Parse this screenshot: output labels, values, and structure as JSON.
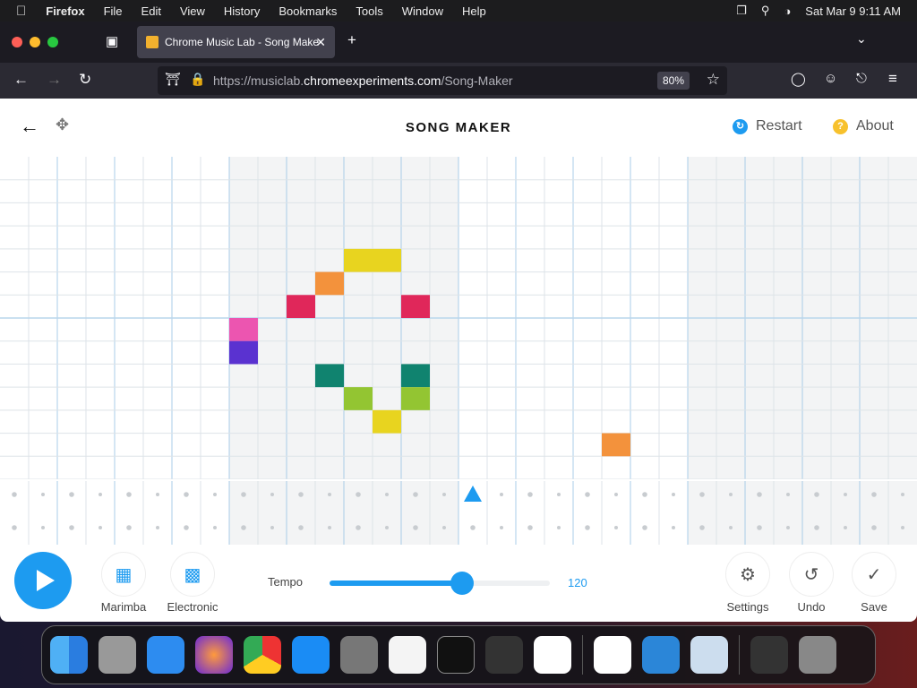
{
  "menubar": {
    "app": "Firefox",
    "items": [
      "File",
      "Edit",
      "View",
      "History",
      "Bookmarks",
      "Tools",
      "Window",
      "Help"
    ],
    "clock": "Sat Mar 9  9:11 AM"
  },
  "browser": {
    "tab_title": "Chrome Music Lab - Song Make",
    "url_prefix": "https://musiclab.",
    "url_domain": "chromeexperiments.com",
    "url_path": "/Song-Maker",
    "zoom": "80%"
  },
  "app": {
    "title": "SONG MAKER",
    "restart": "Restart",
    "about": "About"
  },
  "grid": {
    "columns": 32,
    "rows": 14,
    "notes": [
      {
        "col": 12,
        "row": 4,
        "color": "#e8d41f"
      },
      {
        "col": 13,
        "row": 4,
        "color": "#e8d41f"
      },
      {
        "col": 11,
        "row": 5,
        "color": "#f3923c"
      },
      {
        "col": 10,
        "row": 6,
        "color": "#e0275a"
      },
      {
        "col": 14,
        "row": 6,
        "color": "#e0275a"
      },
      {
        "col": 8,
        "row": 7,
        "color": "#ec55b0"
      },
      {
        "col": 8,
        "row": 8,
        "color": "#5a32d0"
      },
      {
        "col": 11,
        "row": 9,
        "color": "#10836f"
      },
      {
        "col": 14,
        "row": 9,
        "color": "#10836f"
      },
      {
        "col": 12,
        "row": 10,
        "color": "#93c532"
      },
      {
        "col": 14,
        "row": 10,
        "color": "#93c532"
      },
      {
        "col": 13,
        "row": 11,
        "color": "#e8d41f"
      },
      {
        "col": 21,
        "row": 12,
        "color": "#f3923c"
      }
    ],
    "percussion": [
      {
        "col": 16,
        "row": 0,
        "shape": "triangle",
        "color": "#1d9bf0"
      }
    ]
  },
  "controls": {
    "instrument": "Marimba",
    "percussion": "Electronic",
    "tempo_label": "Tempo",
    "tempo": 120,
    "tempo_fraction": 0.6,
    "settings": "Settings",
    "undo": "Undo",
    "save": "Save"
  },
  "colors": {
    "accent": "#1d9bf0"
  }
}
